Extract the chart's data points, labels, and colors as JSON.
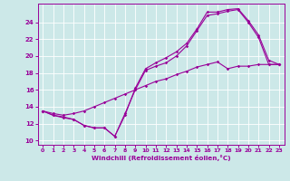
{
  "xlabel": "Windchill (Refroidissement éolien,°C)",
  "bg_color": "#cce8e8",
  "line_color": "#990099",
  "xlim": [
    -0.5,
    23.5
  ],
  "ylim": [
    9.5,
    26.2
  ],
  "yticks": [
    10,
    12,
    14,
    16,
    18,
    20,
    22,
    24
  ],
  "xticks": [
    0,
    1,
    2,
    3,
    4,
    5,
    6,
    7,
    8,
    9,
    10,
    11,
    12,
    13,
    14,
    15,
    16,
    17,
    18,
    19,
    20,
    21,
    22,
    23
  ],
  "series1_x": [
    0,
    1,
    2,
    3,
    4,
    5,
    6,
    7,
    8,
    9,
    10,
    11,
    12,
    13,
    14,
    15,
    16,
    17,
    18,
    19,
    20,
    21,
    22,
    23
  ],
  "series1_y": [
    13.5,
    13.0,
    12.7,
    12.5,
    11.8,
    11.5,
    11.5,
    10.5,
    13.0,
    16.2,
    18.5,
    19.2,
    19.8,
    20.5,
    21.5,
    23.2,
    25.2,
    25.2,
    25.5,
    25.6,
    24.2,
    22.5,
    19.5,
    19.0
  ],
  "series2_x": [
    0,
    1,
    2,
    3,
    4,
    5,
    6,
    7,
    8,
    9,
    10,
    11,
    12,
    13,
    14,
    15,
    16,
    17,
    18,
    19,
    20,
    21,
    22,
    23
  ],
  "series2_y": [
    13.5,
    13.0,
    12.8,
    12.5,
    11.8,
    11.5,
    11.5,
    10.5,
    13.2,
    16.0,
    18.3,
    18.8,
    19.2,
    20.0,
    21.2,
    23.0,
    24.8,
    25.0,
    25.3,
    25.5,
    24.0,
    22.2,
    19.0,
    19.0
  ],
  "series3_x": [
    0,
    1,
    2,
    3,
    4,
    5,
    6,
    7,
    8,
    9,
    10,
    11,
    12,
    13,
    14,
    15,
    16,
    17,
    18,
    19,
    20,
    21,
    22,
    23
  ],
  "series3_y": [
    13.5,
    13.2,
    13.0,
    13.2,
    13.5,
    14.0,
    14.5,
    15.0,
    15.5,
    16.0,
    16.5,
    17.0,
    17.3,
    17.8,
    18.2,
    18.7,
    19.0,
    19.3,
    18.5,
    18.8,
    18.8,
    19.0,
    19.0,
    19.0
  ]
}
